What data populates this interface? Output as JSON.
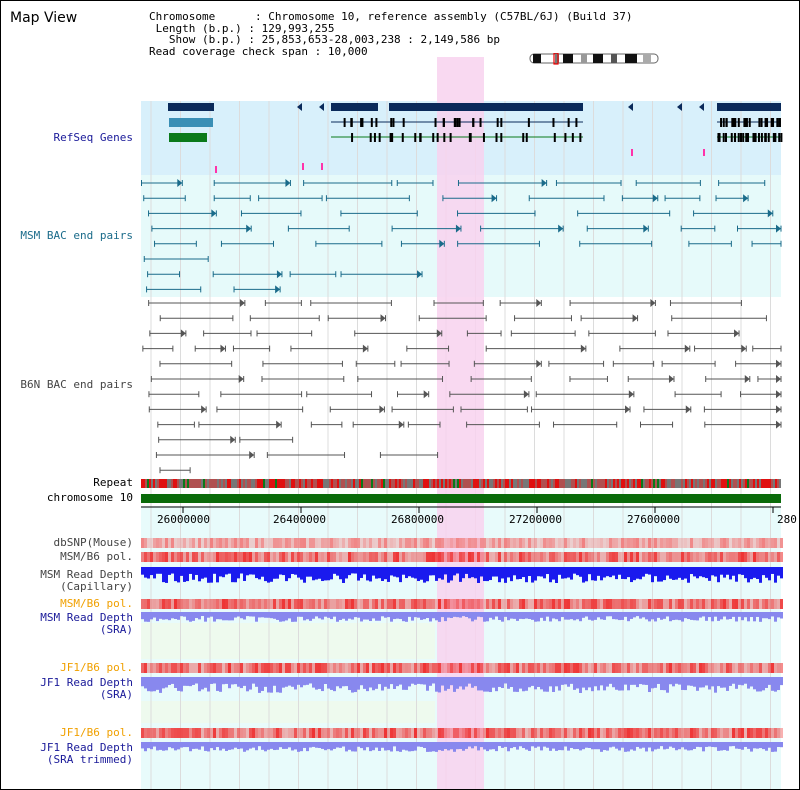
{
  "title": "Map View",
  "info": {
    "chromosome_key": "Chromosome",
    "chromosome_val": "Chromosome 10, reference assembly (C57BL/6J) (Build 37)",
    "length_key": "Length (b.p.)",
    "length_val": "129,993,255",
    "show_key": "Show (b.p.)",
    "show_val": "25,853,653-28,003,238 : 2,149,586 bp",
    "coverage_key": "Read coverage check span",
    "coverage_val": "10,000"
  },
  "tracks": {
    "refseq": "RefSeq Genes",
    "msm_bac": "MSM BAC end pairs",
    "b6n_bac": "B6N BAC end pairs",
    "repeat": "Repeat",
    "chromosome": "chromosome 10",
    "dbsnp": "dbSNP(Mouse)",
    "msm_b6_pol_1": "MSM/B6 pol.",
    "msm_depth_cap_1": "MSM Read Depth",
    "msm_depth_cap_2": "(Capillary)",
    "msm_b6_pol_2": "MSM/B6 pol.",
    "msm_depth_sra_1": "MSM Read Depth",
    "msm_depth_sra_2": "(SRA)",
    "jf1_pol_1": "JF1/B6 pol.",
    "jf1_depth_sra_1": "JF1 Read Depth",
    "jf1_depth_sra_2": "(SRA)",
    "jf1_pol_2": "JF1/B6 pol.",
    "jf1_depth_trim_1": "JF1 Read Depth",
    "jf1_depth_trim_2": "(SRA trimmed)"
  },
  "axis": {
    "ticks": [
      "26000000",
      "26400000",
      "26800000",
      "27200000",
      "27600000",
      "280"
    ]
  },
  "colors": {
    "refseq_band": "#d8f0fb",
    "bac_band": "#e6fafa",
    "highlight": "#f8d2ef",
    "gene_dark": "#0a2a5a",
    "gene_mid": "#3a8fb5",
    "gene_green": "#0a7a1a",
    "msm_bac": "#1a6b8a",
    "b6n_bac": "#555555",
    "chromosome_bar": "#0a6b0a",
    "pol_red": "#ee3333",
    "depth_blue": "#1a1aee",
    "depth_light": "#8888ee"
  }
}
